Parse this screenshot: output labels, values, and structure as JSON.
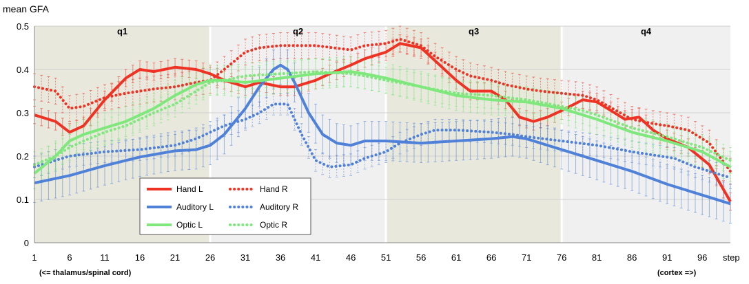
{
  "chart_data": {
    "type": "line",
    "ylabel": "mean GFA",
    "xlabel": "step",
    "ylim": [
      0,
      0.5
    ],
    "yticks": [
      "0",
      "0.1",
      "0.2",
      "0.3",
      "0.4",
      "0.5"
    ],
    "xlim": [
      1,
      100
    ],
    "xticks": [
      "1",
      "6",
      "11",
      "16",
      "21",
      "26",
      "31",
      "36",
      "41",
      "46",
      "51",
      "56",
      "61",
      "66",
      "71",
      "76",
      "81",
      "86",
      "91",
      "96"
    ],
    "x_end_label": "step",
    "left_note": "(<= thalamus/spinal cord)",
    "right_note": "(cortex =>)",
    "legend_position": "bottom-left",
    "grid": true,
    "quartiles": [
      {
        "label": "q1",
        "x_start": 1,
        "x_end": 26,
        "color": "#e9e8dc"
      },
      {
        "label": "q2",
        "x_start": 26,
        "x_end": 51,
        "color": "#f0f0f0"
      },
      {
        "label": "q3",
        "x_start": 51,
        "x_end": 76,
        "color": "#e9e8dc"
      },
      {
        "label": "q4",
        "x_start": 76,
        "x_end": 100,
        "color": "#f0f0f0"
      }
    ],
    "series": [
      {
        "name": "Hand L",
        "color": "#ee3324",
        "dash": "solid",
        "err": 0.02,
        "points": [
          [
            1,
            0.295
          ],
          [
            4,
            0.28
          ],
          [
            6,
            0.255
          ],
          [
            8,
            0.27
          ],
          [
            11,
            0.33
          ],
          [
            14,
            0.38
          ],
          [
            16,
            0.4
          ],
          [
            18,
            0.395
          ],
          [
            21,
            0.405
          ],
          [
            24,
            0.4
          ],
          [
            26,
            0.39
          ],
          [
            28,
            0.375
          ],
          [
            31,
            0.36
          ],
          [
            33,
            0.37
          ],
          [
            36,
            0.36
          ],
          [
            38,
            0.36
          ],
          [
            41,
            0.375
          ],
          [
            43,
            0.39
          ],
          [
            46,
            0.41
          ],
          [
            48,
            0.425
          ],
          [
            51,
            0.44
          ],
          [
            53,
            0.46
          ],
          [
            56,
            0.45
          ],
          [
            58,
            0.42
          ],
          [
            61,
            0.375
          ],
          [
            63,
            0.35
          ],
          [
            66,
            0.35
          ],
          [
            68,
            0.33
          ],
          [
            70,
            0.29
          ],
          [
            72,
            0.28
          ],
          [
            74,
            0.29
          ],
          [
            76,
            0.305
          ],
          [
            79,
            0.33
          ],
          [
            81,
            0.325
          ],
          [
            83,
            0.305
          ],
          [
            85,
            0.285
          ],
          [
            87,
            0.29
          ],
          [
            89,
            0.26
          ],
          [
            91,
            0.24
          ],
          [
            94,
            0.22
          ],
          [
            97,
            0.18
          ],
          [
            100,
            0.095
          ]
        ]
      },
      {
        "name": "Hand R",
        "color": "#ee3324",
        "dash": "dot",
        "err": 0.03,
        "points": [
          [
            1,
            0.36
          ],
          [
            4,
            0.35
          ],
          [
            6,
            0.31
          ],
          [
            8,
            0.315
          ],
          [
            11,
            0.335
          ],
          [
            14,
            0.345
          ],
          [
            16,
            0.35
          ],
          [
            18,
            0.355
          ],
          [
            21,
            0.36
          ],
          [
            24,
            0.37
          ],
          [
            26,
            0.375
          ],
          [
            28,
            0.4
          ],
          [
            31,
            0.44
          ],
          [
            33,
            0.45
          ],
          [
            36,
            0.455
          ],
          [
            41,
            0.455
          ],
          [
            46,
            0.445
          ],
          [
            48,
            0.455
          ],
          [
            51,
            0.46
          ],
          [
            53,
            0.47
          ],
          [
            56,
            0.455
          ],
          [
            58,
            0.43
          ],
          [
            61,
            0.4
          ],
          [
            63,
            0.385
          ],
          [
            66,
            0.375
          ],
          [
            68,
            0.365
          ],
          [
            71,
            0.355
          ],
          [
            73,
            0.35
          ],
          [
            76,
            0.345
          ],
          [
            79,
            0.34
          ],
          [
            81,
            0.33
          ],
          [
            86,
            0.285
          ],
          [
            89,
            0.275
          ],
          [
            91,
            0.27
          ],
          [
            94,
            0.26
          ],
          [
            97,
            0.23
          ],
          [
            100,
            0.165
          ]
        ]
      },
      {
        "name": "Auditory L",
        "color": "#4f81d9",
        "dash": "solid",
        "err": 0.045,
        "points": [
          [
            1,
            0.138
          ],
          [
            6,
            0.155
          ],
          [
            11,
            0.178
          ],
          [
            16,
            0.198
          ],
          [
            21,
            0.212
          ],
          [
            24,
            0.215
          ],
          [
            26,
            0.225
          ],
          [
            28,
            0.25
          ],
          [
            31,
            0.31
          ],
          [
            33,
            0.36
          ],
          [
            35,
            0.4
          ],
          [
            36,
            0.41
          ],
          [
            37,
            0.4
          ],
          [
            38,
            0.37
          ],
          [
            40,
            0.3
          ],
          [
            42,
            0.25
          ],
          [
            44,
            0.23
          ],
          [
            46,
            0.225
          ],
          [
            48,
            0.235
          ],
          [
            51,
            0.235
          ],
          [
            56,
            0.23
          ],
          [
            61,
            0.235
          ],
          [
            66,
            0.24
          ],
          [
            69,
            0.245
          ],
          [
            71,
            0.24
          ],
          [
            76,
            0.215
          ],
          [
            81,
            0.19
          ],
          [
            86,
            0.165
          ],
          [
            91,
            0.135
          ],
          [
            96,
            0.11
          ],
          [
            100,
            0.09
          ]
        ]
      },
      {
        "name": "Auditory R",
        "color": "#4f81d9",
        "dash": "dot",
        "err": 0.025,
        "points": [
          [
            1,
            0.175
          ],
          [
            6,
            0.2
          ],
          [
            11,
            0.21
          ],
          [
            16,
            0.215
          ],
          [
            21,
            0.225
          ],
          [
            24,
            0.24
          ],
          [
            26,
            0.255
          ],
          [
            28,
            0.27
          ],
          [
            31,
            0.285
          ],
          [
            33,
            0.3
          ],
          [
            35,
            0.32
          ],
          [
            37,
            0.32
          ],
          [
            39,
            0.25
          ],
          [
            41,
            0.19
          ],
          [
            43,
            0.175
          ],
          [
            46,
            0.18
          ],
          [
            48,
            0.195
          ],
          [
            51,
            0.21
          ],
          [
            53,
            0.23
          ],
          [
            56,
            0.25
          ],
          [
            58,
            0.26
          ],
          [
            61,
            0.26
          ],
          [
            66,
            0.255
          ],
          [
            69,
            0.25
          ],
          [
            71,
            0.245
          ],
          [
            76,
            0.235
          ],
          [
            81,
            0.225
          ],
          [
            86,
            0.21
          ],
          [
            88,
            0.205
          ],
          [
            90,
            0.2
          ],
          [
            92,
            0.195
          ],
          [
            95,
            0.175
          ],
          [
            98,
            0.16
          ],
          [
            100,
            0.15
          ]
        ]
      },
      {
        "name": "Optic L",
        "color": "#7ee87c",
        "dash": "solid",
        "err": 0.035,
        "points": [
          [
            1,
            0.16
          ],
          [
            4,
            0.2
          ],
          [
            6,
            0.235
          ],
          [
            8,
            0.25
          ],
          [
            11,
            0.265
          ],
          [
            14,
            0.28
          ],
          [
            16,
            0.295
          ],
          [
            18,
            0.31
          ],
          [
            21,
            0.34
          ],
          [
            24,
            0.365
          ],
          [
            26,
            0.375
          ],
          [
            28,
            0.375
          ],
          [
            31,
            0.37
          ],
          [
            36,
            0.38
          ],
          [
            41,
            0.39
          ],
          [
            46,
            0.395
          ],
          [
            48,
            0.39
          ],
          [
            51,
            0.38
          ],
          [
            56,
            0.36
          ],
          [
            61,
            0.34
          ],
          [
            66,
            0.33
          ],
          [
            71,
            0.325
          ],
          [
            76,
            0.31
          ],
          [
            79,
            0.295
          ],
          [
            81,
            0.285
          ],
          [
            86,
            0.255
          ],
          [
            91,
            0.235
          ],
          [
            96,
            0.21
          ],
          [
            100,
            0.175
          ]
        ]
      },
      {
        "name": "Optic R",
        "color": "#7ee87c",
        "dash": "dot",
        "err": 0.03,
        "points": [
          [
            1,
            0.18
          ],
          [
            4,
            0.2
          ],
          [
            6,
            0.22
          ],
          [
            8,
            0.235
          ],
          [
            11,
            0.255
          ],
          [
            14,
            0.27
          ],
          [
            16,
            0.285
          ],
          [
            18,
            0.3
          ],
          [
            21,
            0.32
          ],
          [
            24,
            0.35
          ],
          [
            26,
            0.37
          ],
          [
            28,
            0.375
          ],
          [
            31,
            0.385
          ],
          [
            36,
            0.39
          ],
          [
            41,
            0.395
          ],
          [
            46,
            0.39
          ],
          [
            48,
            0.385
          ],
          [
            51,
            0.375
          ],
          [
            56,
            0.36
          ],
          [
            61,
            0.345
          ],
          [
            66,
            0.34
          ],
          [
            71,
            0.33
          ],
          [
            76,
            0.315
          ],
          [
            79,
            0.305
          ],
          [
            81,
            0.295
          ],
          [
            86,
            0.265
          ],
          [
            91,
            0.245
          ],
          [
            96,
            0.22
          ],
          [
            100,
            0.19
          ]
        ]
      }
    ]
  }
}
